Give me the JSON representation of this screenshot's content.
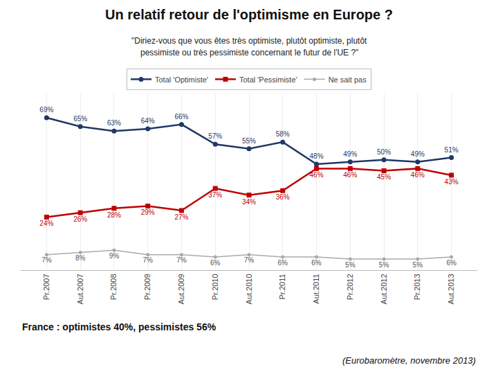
{
  "chart_data": {
    "type": "line",
    "title": "Un relatif retour de l'optimisme en Europe ?",
    "subtitle": [
      "\"Diriez-vous que vous êtes très optimiste, plutôt optimiste, plutôt",
      "pessimiste ou très pessimiste concernant le futur de l'UE ?\""
    ],
    "annotations": [
      "France : optimistes 40%, pessimistes 56%",
      "(Eurobaromètre, novembre 2013)"
    ],
    "categories": [
      "Pr.2007",
      "Aut.2007",
      "Pr.2008",
      "Pr.2009",
      "Aut.2009",
      "Pr.2010",
      "Aut.2010",
      "Pr.2011",
      "Aut.2011",
      "Pr.2012",
      "Aut.2012",
      "Pr.2013",
      "Aut.2013"
    ],
    "series": [
      {
        "name": "Total 'Optimiste'",
        "color": "#1F3864",
        "marker": "circle",
        "values": [
          69,
          65,
          63,
          64,
          66,
          57,
          55,
          58,
          48,
          49,
          50,
          49,
          51
        ],
        "value_labels": [
          "69%",
          "65%",
          "63%",
          "64%",
          "66%",
          "57%",
          "55%",
          "58%",
          "48%",
          "49%",
          "50%",
          "49%",
          "51%"
        ]
      },
      {
        "name": "Total 'Pessimiste'",
        "color": "#C00000",
        "marker": "square",
        "values": [
          24,
          26,
          28,
          29,
          27,
          37,
          34,
          36,
          46,
          46,
          45,
          46,
          43
        ],
        "value_labels": [
          "24%",
          "26%",
          "28%",
          "29%",
          "27%",
          "37%",
          "34%",
          "36%",
          "46%",
          "46%",
          "45%",
          "46%",
          "43%"
        ]
      },
      {
        "name": "Ne sait pas",
        "color": "#AAAAAA",
        "marker": "circle",
        "values": [
          7,
          8,
          9,
          7,
          7,
          6,
          7,
          6,
          6,
          5,
          5,
          5,
          6
        ],
        "value_labels": [
          "7%",
          "8%",
          "9%",
          "7%",
          "7%",
          "6%",
          "7%",
          "6%",
          "6%",
          "5%",
          "5%",
          "5%",
          "6%"
        ]
      }
    ],
    "ylim": [
      0,
      80
    ],
    "grid": true,
    "legend": "top",
    "data_labels": true,
    "tick_labels": "x"
  }
}
